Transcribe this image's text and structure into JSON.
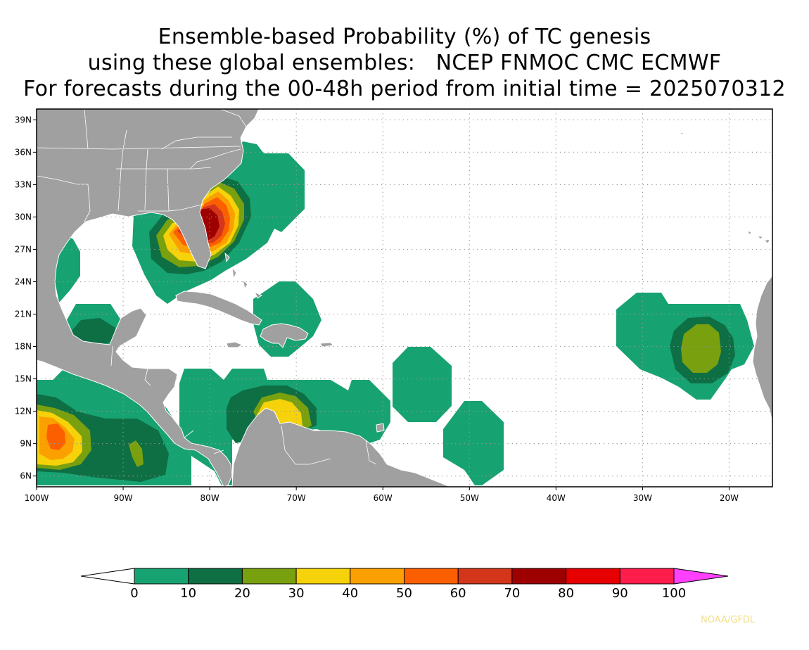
{
  "title": {
    "line1": "Ensemble-based Probability (%) of TC genesis",
    "line2": "using these global ensembles:   NCEP FNMOC CMC ECMWF",
    "line3": "For forecasts during the 00-48h period from initial time = 2025070312"
  },
  "map": {
    "lon_range": [
      -100,
      -15
    ],
    "lat_range": [
      5,
      40
    ],
    "lat_ticks": [
      "6N",
      "9N",
      "12N",
      "15N",
      "18N",
      "21N",
      "24N",
      "27N",
      "30N",
      "33N",
      "36N",
      "39N"
    ],
    "lon_ticks": [
      "100W",
      "90W",
      "80W",
      "70W",
      "60W",
      "50W",
      "40W",
      "30W",
      "20W"
    ],
    "land_color": "#a0a0a0",
    "grid": "dotted"
  },
  "colorbar": {
    "labels": [
      "0",
      "10",
      "20",
      "30",
      "40",
      "50",
      "60",
      "70",
      "80",
      "90",
      "100"
    ],
    "colors": [
      "#17a271",
      "#0e6e44",
      "#78a00f",
      "#f6d20a",
      "#fba000",
      "#fb5f00",
      "#d3361b",
      "#9e0000",
      "#e60000",
      "#ff1d4c"
    ],
    "below_color": "#ffffff",
    "above_color": "#ff40ff"
  },
  "credit": "NOAA/GFDL"
}
